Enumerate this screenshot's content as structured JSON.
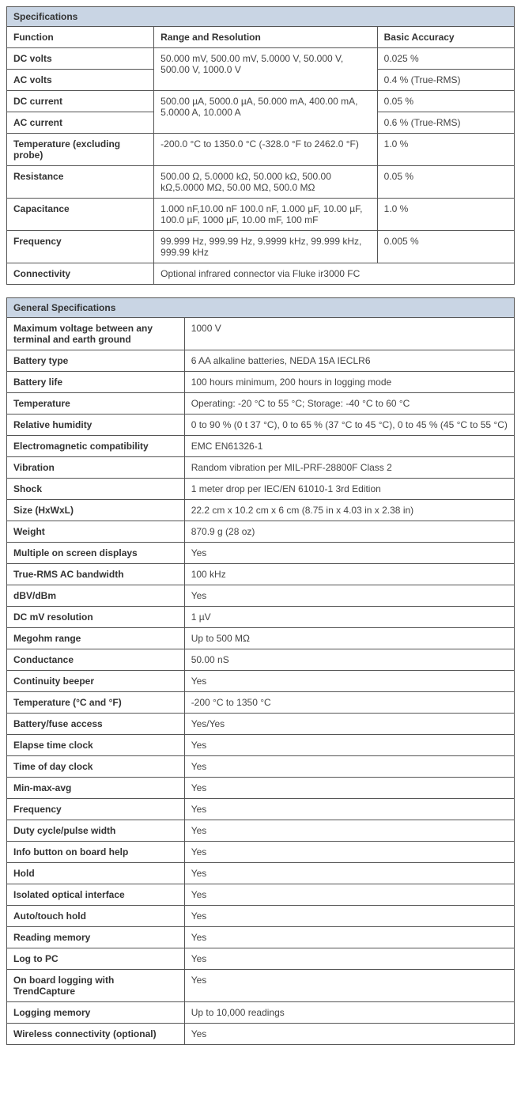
{
  "specs": {
    "title": "Specifications",
    "header": {
      "function": "Function",
      "range": "Range and Resolution",
      "accuracy": "Basic Accuracy"
    },
    "dc_volts": {
      "label": "DC volts",
      "accuracy": "0.025 %"
    },
    "ac_volts": {
      "label": "AC volts",
      "accuracy": "0.4 % (True-RMS)"
    },
    "volts_range": "50.000 mV, 500.00 mV, 5.0000 V, 50.000 V, 500.00 V, 1000.0 V",
    "dc_current": {
      "label": "DC current",
      "accuracy": "0.05 %"
    },
    "ac_current": {
      "label": "AC current",
      "accuracy": "0.6 % (True-RMS)"
    },
    "current_range": "500.00 µA, 5000.0 µA, 50.000 mA, 400.00 mA, 5.0000 A, 10.000 A",
    "temperature": {
      "label": "Temperature (excluding probe)",
      "range": "-200.0 °C to 1350.0 °C (-328.0 °F to 2462.0 °F)",
      "accuracy": "1.0 %"
    },
    "resistance": {
      "label": "Resistance",
      "range": "500.00 Ω, 5.0000 kΩ, 50.000 kΩ, 500.00 kΩ,5.0000 MΩ, 50.00 MΩ, 500.0 MΩ",
      "accuracy": "0.05 %"
    },
    "capacitance": {
      "label": "Capacitance",
      "range": "1.000 nF,10.00 nF 100.0 nF, 1.000 µF, 10.00 µF, 100.0 µF, 1000 µF, 10.00 mF, 100 mF",
      "accuracy": "1.0 %"
    },
    "frequency": {
      "label": "Frequency",
      "range": "99.999 Hz, 999.99 Hz, 9.9999 kHz, 99.999 kHz, 999.99 kHz",
      "accuracy": "0.005 %"
    },
    "connectivity": {
      "label": "Connectivity",
      "value": "Optional infrared connector via Fluke ir3000 FC"
    }
  },
  "gen": {
    "title": "General Specifications",
    "rows": [
      {
        "label": "Maximum voltage between any terminal and earth ground",
        "value": "1000 V"
      },
      {
        "label": "Battery type",
        "value": "6 AA alkaline batteries, NEDA 15A IECLR6"
      },
      {
        "label": "Battery life",
        "value": "100 hours minimum, 200 hours in logging mode"
      },
      {
        "label": "Temperature",
        "value": "Operating: -20 °C to 55 °C; Storage: -40 °C to 60 °C"
      },
      {
        "label": "Relative humidity",
        "value": "0 to 90 % (0 t 37 °C), 0 to 65 % (37 °C to 45 °C), 0 to 45 % (45 °C to 55 °C)"
      },
      {
        "label": "Electromagnetic compatibility",
        "value": "EMC EN61326-1"
      },
      {
        "label": "Vibration",
        "value": "Random vibration per MIL-PRF-28800F Class 2"
      },
      {
        "label": "Shock",
        "value": "1 meter drop per IEC/EN 61010-1 3rd Edition"
      },
      {
        "label": "Size (HxWxL)",
        "value": "22.2 cm x 10.2 cm x 6 cm (8.75 in x 4.03 in x 2.38 in)"
      },
      {
        "label": "Weight",
        "value": "870.9 g (28 oz)"
      },
      {
        "label": "Multiple on screen displays",
        "value": "Yes"
      },
      {
        "label": "True-RMS AC bandwidth",
        "value": "100 kHz"
      },
      {
        "label": "dBV/dBm",
        "value": "Yes"
      },
      {
        "label": "DC mV resolution",
        "value": "1 µV"
      },
      {
        "label": "Megohm range",
        "value": "Up to 500 MΩ"
      },
      {
        "label": "Conductance",
        "value": "50.00 nS"
      },
      {
        "label": "Continuity beeper",
        "value": "Yes"
      },
      {
        "label": "Temperature (°C and °F)",
        "value": "-200 °C to 1350 °C"
      },
      {
        "label": "Battery/fuse access",
        "value": "Yes/Yes"
      },
      {
        "label": "Elapse time clock",
        "value": "Yes"
      },
      {
        "label": "Time of day clock",
        "value": "Yes"
      },
      {
        "label": "Min-max-avg",
        "value": "Yes"
      },
      {
        "label": "Frequency",
        "value": "Yes"
      },
      {
        "label": "Duty cycle/pulse width",
        "value": "Yes"
      },
      {
        "label": "Info button on board help",
        "value": "Yes"
      },
      {
        "label": "Hold",
        "value": "Yes"
      },
      {
        "label": "Isolated optical interface",
        "value": "Yes"
      },
      {
        "label": "Auto/touch hold",
        "value": "Yes"
      },
      {
        "label": "Reading memory",
        "value": "Yes"
      },
      {
        "label": "Log to PC",
        "value": "Yes"
      },
      {
        "label": "On board logging with TrendCapture",
        "value": "Yes"
      },
      {
        "label": "Logging memory",
        "value": "Up to 10,000 readings"
      },
      {
        "label": "Wireless connectivity (optional)",
        "value": "Yes"
      }
    ]
  }
}
